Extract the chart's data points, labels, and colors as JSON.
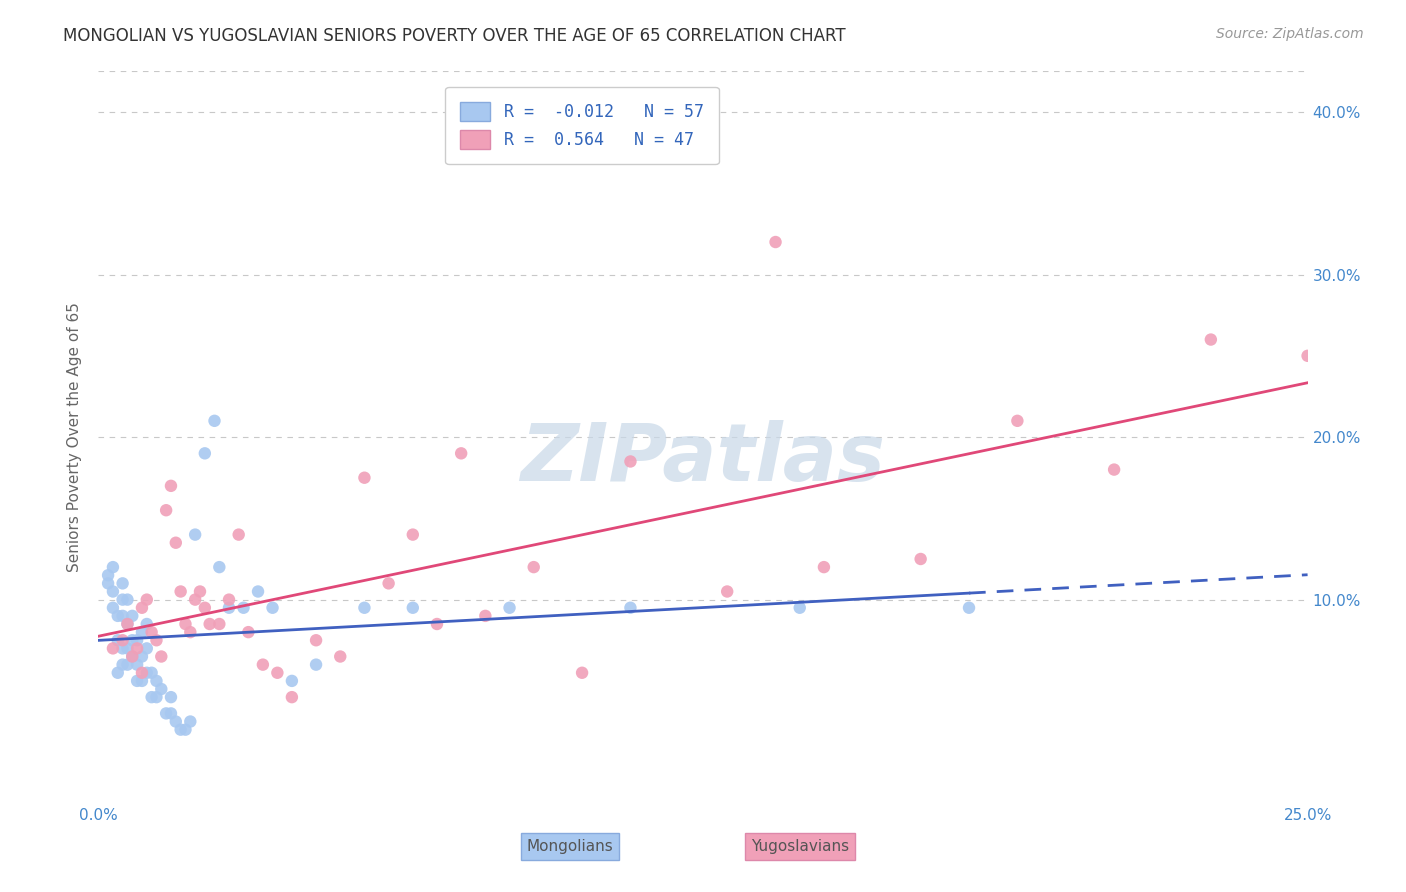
{
  "title": "MONGOLIAN VS YUGOSLAVIAN SENIORS POVERTY OVER THE AGE OF 65 CORRELATION CHART",
  "source": "Source: ZipAtlas.com",
  "ylabel": "Seniors Poverty Over the Age of 65",
  "xlabel_mongolians": "Mongolians",
  "xlabel_yugoslavians": "Yugoslavians",
  "mongolian_R": -0.012,
  "mongolian_N": 57,
  "yugoslavian_R": 0.564,
  "yugoslavian_N": 47,
  "mongolian_color": "#a8c8f0",
  "yugoslavian_color": "#f0a0b8",
  "mongolian_line_color": "#4060c0",
  "yugoslavian_line_color": "#e04878",
  "background_color": "#ffffff",
  "grid_color": "#c8c8c8",
  "xmin": 0.0,
  "xmax": 0.25,
  "ymin": -0.025,
  "ymax": 0.425,
  "mongolian_x": [
    0.002,
    0.002,
    0.003,
    0.003,
    0.003,
    0.004,
    0.004,
    0.004,
    0.005,
    0.005,
    0.005,
    0.005,
    0.005,
    0.006,
    0.006,
    0.006,
    0.006,
    0.007,
    0.007,
    0.007,
    0.008,
    0.008,
    0.008,
    0.009,
    0.009,
    0.009,
    0.01,
    0.01,
    0.01,
    0.011,
    0.011,
    0.012,
    0.012,
    0.013,
    0.014,
    0.015,
    0.015,
    0.016,
    0.017,
    0.018,
    0.019,
    0.02,
    0.022,
    0.024,
    0.025,
    0.027,
    0.03,
    0.033,
    0.036,
    0.04,
    0.045,
    0.055,
    0.065,
    0.085,
    0.11,
    0.145,
    0.18
  ],
  "mongolian_y": [
    0.11,
    0.115,
    0.095,
    0.105,
    0.12,
    0.055,
    0.075,
    0.09,
    0.06,
    0.07,
    0.09,
    0.1,
    0.11,
    0.06,
    0.07,
    0.085,
    0.1,
    0.065,
    0.075,
    0.09,
    0.05,
    0.06,
    0.075,
    0.05,
    0.065,
    0.08,
    0.055,
    0.07,
    0.085,
    0.04,
    0.055,
    0.04,
    0.05,
    0.045,
    0.03,
    0.03,
    0.04,
    0.025,
    0.02,
    0.02,
    0.025,
    0.14,
    0.19,
    0.21,
    0.12,
    0.095,
    0.095,
    0.105,
    0.095,
    0.05,
    0.06,
    0.095,
    0.095,
    0.095,
    0.095,
    0.095,
    0.095
  ],
  "yugoslavian_x": [
    0.003,
    0.005,
    0.006,
    0.007,
    0.008,
    0.009,
    0.009,
    0.01,
    0.011,
    0.012,
    0.013,
    0.014,
    0.015,
    0.016,
    0.017,
    0.018,
    0.019,
    0.02,
    0.021,
    0.022,
    0.023,
    0.025,
    0.027,
    0.029,
    0.031,
    0.034,
    0.037,
    0.04,
    0.045,
    0.05,
    0.055,
    0.06,
    0.065,
    0.07,
    0.075,
    0.08,
    0.09,
    0.1,
    0.11,
    0.13,
    0.15,
    0.17,
    0.19,
    0.21,
    0.23,
    0.25,
    0.14
  ],
  "yugoslavian_y": [
    0.07,
    0.075,
    0.085,
    0.065,
    0.07,
    0.095,
    0.055,
    0.1,
    0.08,
    0.075,
    0.065,
    0.155,
    0.17,
    0.135,
    0.105,
    0.085,
    0.08,
    0.1,
    0.105,
    0.095,
    0.085,
    0.085,
    0.1,
    0.14,
    0.08,
    0.06,
    0.055,
    0.04,
    0.075,
    0.065,
    0.175,
    0.11,
    0.14,
    0.085,
    0.19,
    0.09,
    0.12,
    0.055,
    0.185,
    0.105,
    0.12,
    0.125,
    0.21,
    0.18,
    0.26,
    0.25,
    0.32
  ],
  "watermark_color": "#c8d8e8",
  "title_fontsize": 12,
  "legend_fontsize": 12,
  "axis_label_fontsize": 11,
  "tick_fontsize": 11
}
